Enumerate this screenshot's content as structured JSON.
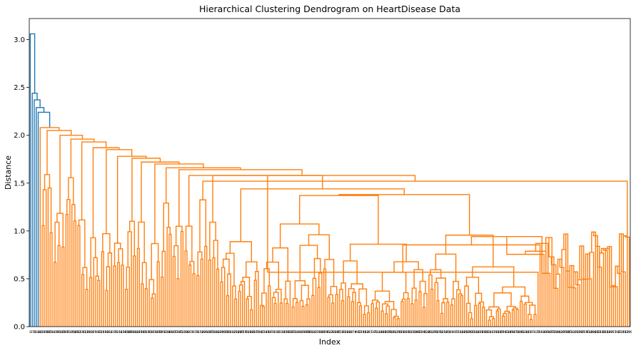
{
  "chart_data": {
    "type": "dendrogram",
    "title": "Hierarchical Clustering Dendrogram on HeartDisease Data",
    "xlabel": "Index",
    "ylabel": "Distance",
    "ylim": [
      0,
      3.22
    ],
    "yticks": [
      0.0,
      0.5,
      1.0,
      1.5,
      2.0,
      2.5,
      3.0
    ],
    "ytick_labels": [
      "0.0",
      "0.5",
      "1.0",
      "1.5",
      "2.0",
      "2.5",
      "3.0"
    ],
    "leaf_count": 303,
    "grid": false,
    "colors": {
      "outlier_links": "#1f77b4",
      "main_cluster": "#ff7f0e",
      "axes": "#000000"
    },
    "top_merges": [
      {
        "distance": 3.06,
        "cluster": "outlier_links"
      },
      {
        "distance": 2.44,
        "cluster": "outlier_links"
      },
      {
        "distance": 2.37,
        "cluster": "outlier_links"
      },
      {
        "distance": 2.29,
        "cluster": "outlier_links"
      },
      {
        "distance": 2.24,
        "cluster": "outlier_links"
      },
      {
        "distance": 2.08,
        "cluster": "main_cluster"
      },
      {
        "distance": 2.05,
        "cluster": "main_cluster"
      },
      {
        "distance": 2.0,
        "cluster": "main_cluster"
      },
      {
        "distance": 1.93,
        "cluster": "main_cluster"
      },
      {
        "distance": 1.87,
        "cluster": "main_cluster"
      },
      {
        "distance": 1.78,
        "cluster": "main_cluster"
      },
      {
        "distance": 1.72,
        "cluster": "main_cluster"
      },
      {
        "distance": 1.66,
        "cluster": "main_cluster"
      },
      {
        "distance": 1.58,
        "cluster": "main_cluster"
      },
      {
        "distance": 1.52,
        "cluster": "main_cluster"
      },
      {
        "distance": 1.44,
        "cluster": "main_cluster"
      },
      {
        "distance": 1.38,
        "cluster": "main_cluster"
      },
      {
        "distance": 1.37,
        "cluster": "main_cluster"
      },
      {
        "distance": 1.2,
        "cluster": "main_cluster"
      },
      {
        "distance": 1.09,
        "cluster": "main_cluster"
      }
    ]
  }
}
